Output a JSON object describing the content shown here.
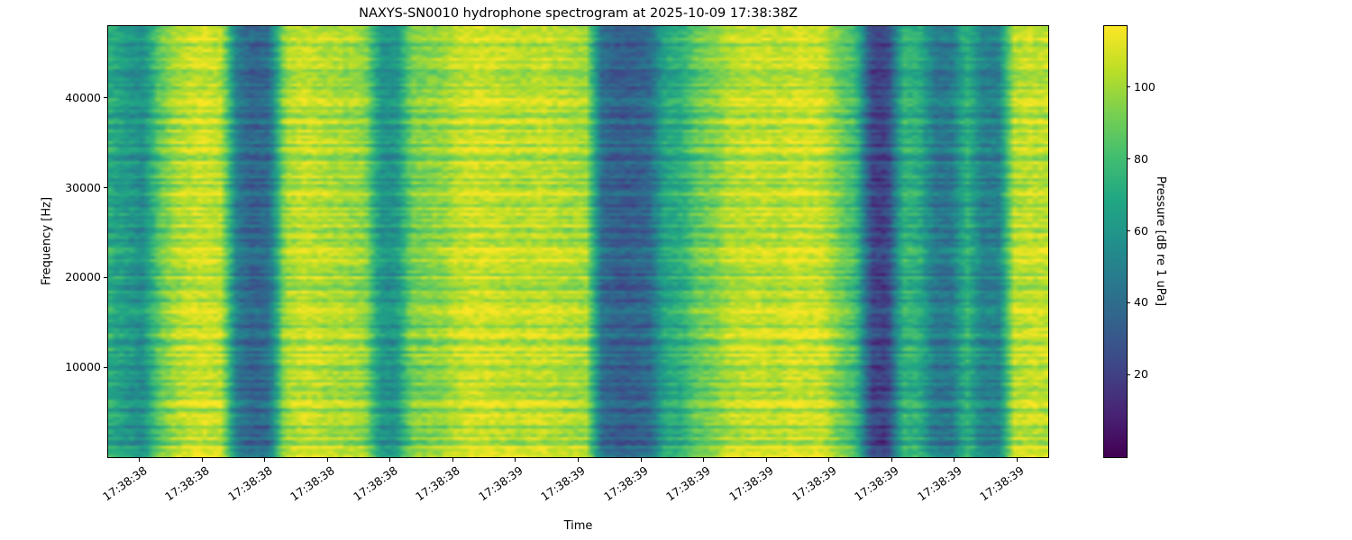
{
  "chart_data": {
    "type": "heatmap",
    "title": "NAXYS-SN0010 hydrophone spectrogram at 2025-10-09 17:38:38Z",
    "xlabel": "Time",
    "ylabel": "Frequency [Hz]",
    "x_tick_labels": [
      "17:38:38",
      "17:38:38",
      "17:38:38",
      "17:38:38",
      "17:38:38",
      "17:38:38",
      "17:38:39",
      "17:38:39",
      "17:38:39",
      "17:38:39",
      "17:38:39",
      "17:38:39",
      "17:38:39",
      "17:38:39",
      "17:38:39"
    ],
    "y_ticks": [
      10000,
      20000,
      30000,
      40000
    ],
    "y_range_hz": [
      0,
      48000
    ],
    "colorbar": {
      "label": "Pressure [dB re 1 uPa]",
      "ticks": [
        20,
        40,
        60,
        80,
        100
      ],
      "range_db": [
        -3,
        117
      ]
    },
    "colormap": "viridis",
    "viridis_stops": [
      "#440154",
      "#482475",
      "#414487",
      "#355f8d",
      "#2a788e",
      "#21918c",
      "#22a884",
      "#44bf70",
      "#7ad151",
      "#bddf26",
      "#fde725"
    ],
    "time_profile_db": [
      70,
      62,
      55,
      85,
      100,
      106,
      108,
      104,
      45,
      35,
      40,
      100,
      106,
      105,
      102,
      100,
      98,
      60,
      58,
      92,
      95,
      97,
      106,
      108,
      107,
      105,
      103,
      106,
      104,
      102,
      100,
      40,
      33,
      34,
      38,
      68,
      72,
      88,
      92,
      103,
      105,
      106,
      104,
      108,
      107,
      106,
      90,
      80,
      22,
      20,
      75,
      72,
      46,
      44,
      74,
      50,
      48,
      103,
      106,
      105
    ],
    "texture": {
      "seed": 11,
      "rows": 150,
      "cols": 180,
      "row_stripe_db": 11,
      "cell_noise_db": 7
    }
  }
}
